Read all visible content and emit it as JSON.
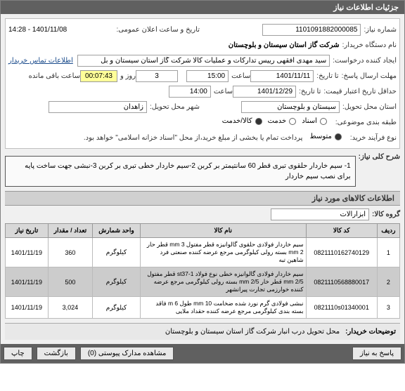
{
  "header": {
    "title": "جزئیات اطلاعات نیاز"
  },
  "form": {
    "niaz_number_label": "شماره نیاز:",
    "niaz_number": "1101091882000085",
    "public_date_label": "تاریخ و ساعت اعلان عمومی:",
    "public_date": "1401/11/08 - 14:28",
    "buyer_org_label": "نام دستگاه خریدار:",
    "buyer_org": "شرکت گاز استان سیستان و بلوچستان",
    "requester_label": "ایجاد کننده درخواست:",
    "requester": "سید مهدی افقهی رییس تدارکات و عملیات کالا شرکت گاز استان سیستان و بل",
    "contact_link": "اطلاعات تماس خریدار",
    "deadline_label": "مهلت ارسال پاسخ:",
    "deadline_until": "تا تاریخ:",
    "deadline_date": "1401/11/11",
    "deadline_time_label": "ساعت",
    "deadline_time": "15:00",
    "days_label": "روز و",
    "days": "3",
    "remaining_label": "ساعت باقی مانده",
    "timer": "00:07:43",
    "min_valid_label": "حداقل تاریخ اعتبار قیمت:",
    "min_valid_until": "تا تاریخ:",
    "min_valid_date": "1401/12/29",
    "min_valid_time_label": "ساعت",
    "min_valid_time": "14:00",
    "delivery_province_label": "استان محل تحویل:",
    "delivery_province": "سیستان و بلوچستان",
    "delivery_city_label": "شهر محل تحویل:",
    "delivery_city": "زاهدان",
    "category_label": "طبقه بندی موضوعی:",
    "categories": [
      {
        "label": "اسناد",
        "checked": false
      },
      {
        "label": "خدمت",
        "checked": false
      },
      {
        "label": "کالا/خدمت",
        "checked": true
      }
    ],
    "purchase_type_label": "نوع فرآیند خرید:",
    "purchase_types": [
      {
        "label": "متوسط",
        "checked": true
      }
    ],
    "purchase_note": "پرداخت تمام یا بخشی از مبلغ خرید،از محل \"اسناد خزانه اسلامی\" خواهد بود.",
    "key_summary_label": "شرح کلی نیاز:",
    "key_summary": "1- سیم خاردار حلقوی تبری قطر 60 سانتیمتر بر کربن 2-سیم خاردار خطی تبری بر کربن 3-نبشی جهت ساخت پایه برای نصب سیم خاردار",
    "group_label": "گروه کالا:",
    "group": "ابزارآلات"
  },
  "items_header": "اطلاعات کالاهای مورد نیاز",
  "table": {
    "columns": [
      "ردیف",
      "کد کالا",
      "نام کالا",
      "واحد شمارش",
      "تعداد / مقدار",
      "تاریخ نیاز"
    ],
    "rows": [
      {
        "idx": "1",
        "code": "0821110162740129",
        "name": "سیم خاردار فولادی حلقوی گالوانیزه قطر مفتول mm 3 قطر حار mm 2 بسته رولی کیلوگرمی مرجع عرضه کننده صنعتی فرد شاهین تبه",
        "unit": "کیلوگرم",
        "qty": "360",
        "date": "1401/11/19"
      },
      {
        "idx": "2",
        "code": "0821110568880017",
        "name": "سیم خاردار فولادی گالوانیزه خطی نوع فولاد st37-1 قطر مفتول mm 2/5 قطر خار mm 2/5 بسته رولی کیلوگرمی مرجع عرضه کننده خوارزمی تجارت پیرانشهر",
        "unit": "کیلوگرم",
        "qty": "500",
        "date": "1401/11/19"
      },
      {
        "idx": "3",
        "code": "0821110s01340001",
        "name": "نبشی فولادی گرم نورد شده ضخامت mm 10 طول m 6 فاقد بسته بندی کیلوگرمی مرجع عرضه کننده حقداد ملایی",
        "unit": "کیلوگرم",
        "qty": "3,024",
        "date": "1401/11/19"
      }
    ]
  },
  "footer": {
    "buyer_notes_label": "توضیحات خریدار:",
    "buyer_notes": "محل تحویل درب انبار شرکت گاز استان سیستان و بلوچستان"
  },
  "buttons": {
    "attachments": "مشاهده مدارک پیوستی (0)",
    "back": "بازگشت",
    "print": "چاپ",
    "respond": "پاسخ به نیاز"
  },
  "colors": {
    "header_bg": "#606060",
    "header_fg": "#ffffff",
    "panel_bg": "#f0f0f0",
    "link": "#1a4b8c",
    "timer_bg": "#ffff99",
    "row_even": "#cccccc"
  }
}
